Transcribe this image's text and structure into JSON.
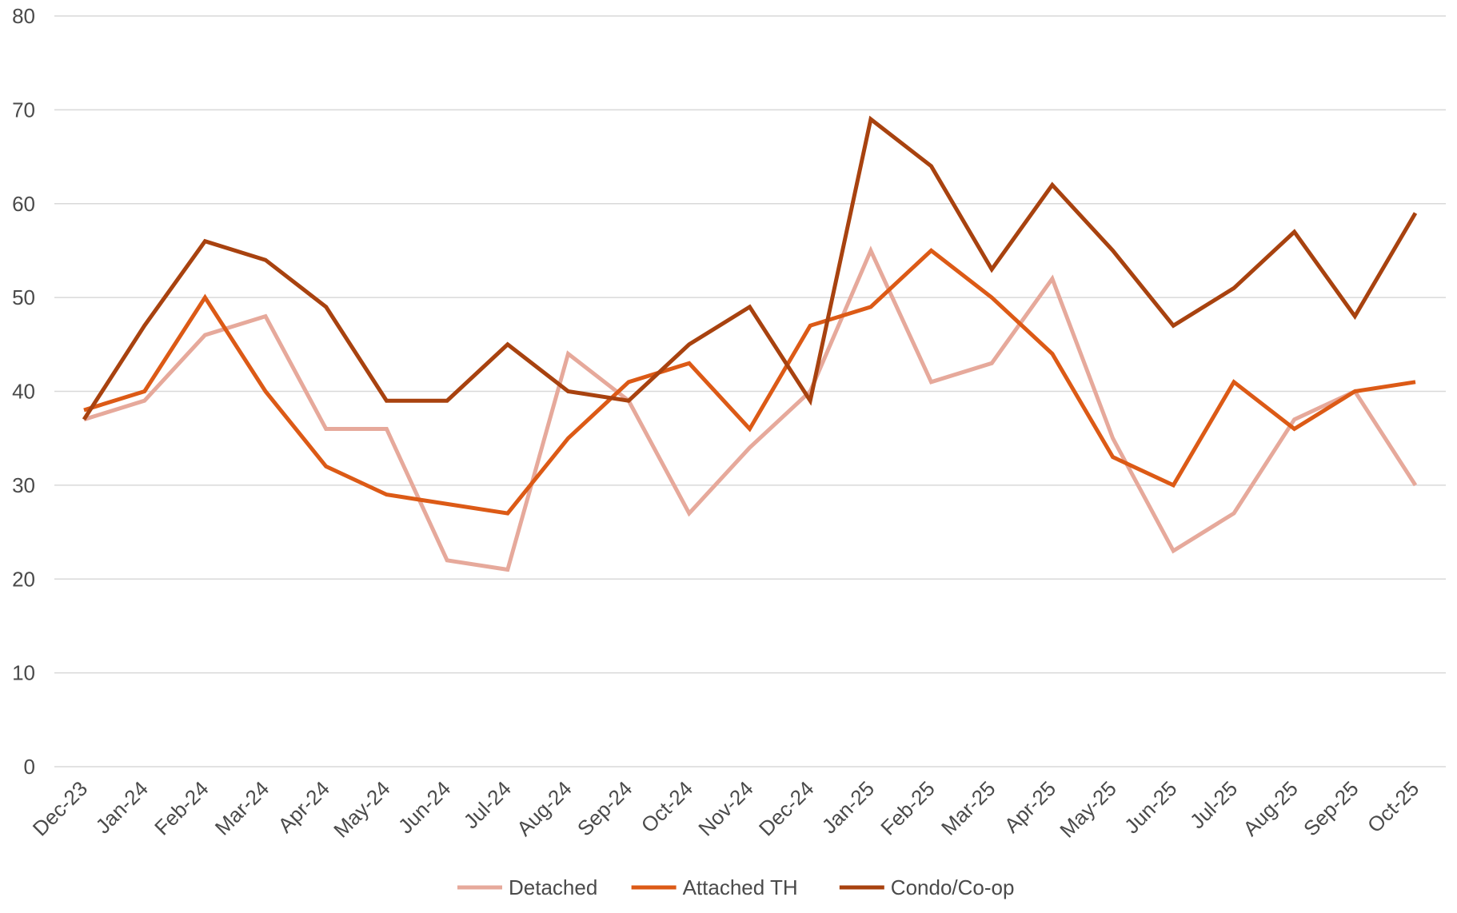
{
  "chart_data": {
    "type": "line",
    "title": "",
    "xlabel": "",
    "ylabel": "",
    "categories": [
      "Dec-23",
      "Jan-24",
      "Feb-24",
      "Mar-24",
      "Apr-24",
      "May-24",
      "Jun-24",
      "Jul-24",
      "Aug-24",
      "Sep-24",
      "Oct-24",
      "Nov-24",
      "Dec-24",
      "Jan-25",
      "Feb-25",
      "Mar-25",
      "Apr-25",
      "May-25",
      "Jun-25",
      "Jul-25",
      "Aug-25",
      "Sep-25",
      "Oct-25"
    ],
    "ylim": [
      0,
      80
    ],
    "yticks": [
      0,
      10,
      20,
      30,
      40,
      50,
      60,
      70,
      80
    ],
    "grid": true,
    "legend_position": "bottom",
    "series": [
      {
        "name": "Detached",
        "color": "#e6a99b",
        "values": [
          37,
          39,
          46,
          48,
          36,
          36,
          22,
          21,
          44,
          39,
          27,
          34,
          40,
          55,
          41,
          43,
          52,
          35,
          23,
          27,
          37,
          40,
          30
        ]
      },
      {
        "name": "Attached TH",
        "color": "#dc5a16",
        "values": [
          38,
          40,
          50,
          40,
          32,
          29,
          28,
          27,
          35,
          41,
          43,
          36,
          47,
          49,
          55,
          50,
          44,
          33,
          30,
          41,
          36,
          40,
          41
        ]
      },
      {
        "name": "Condo/Co-op",
        "color": "#a8420f",
        "values": [
          37,
          47,
          56,
          54,
          49,
          39,
          39,
          45,
          40,
          39,
          45,
          49,
          39,
          69,
          64,
          53,
          62,
          55,
          47,
          51,
          57,
          48,
          59
        ]
      }
    ]
  }
}
